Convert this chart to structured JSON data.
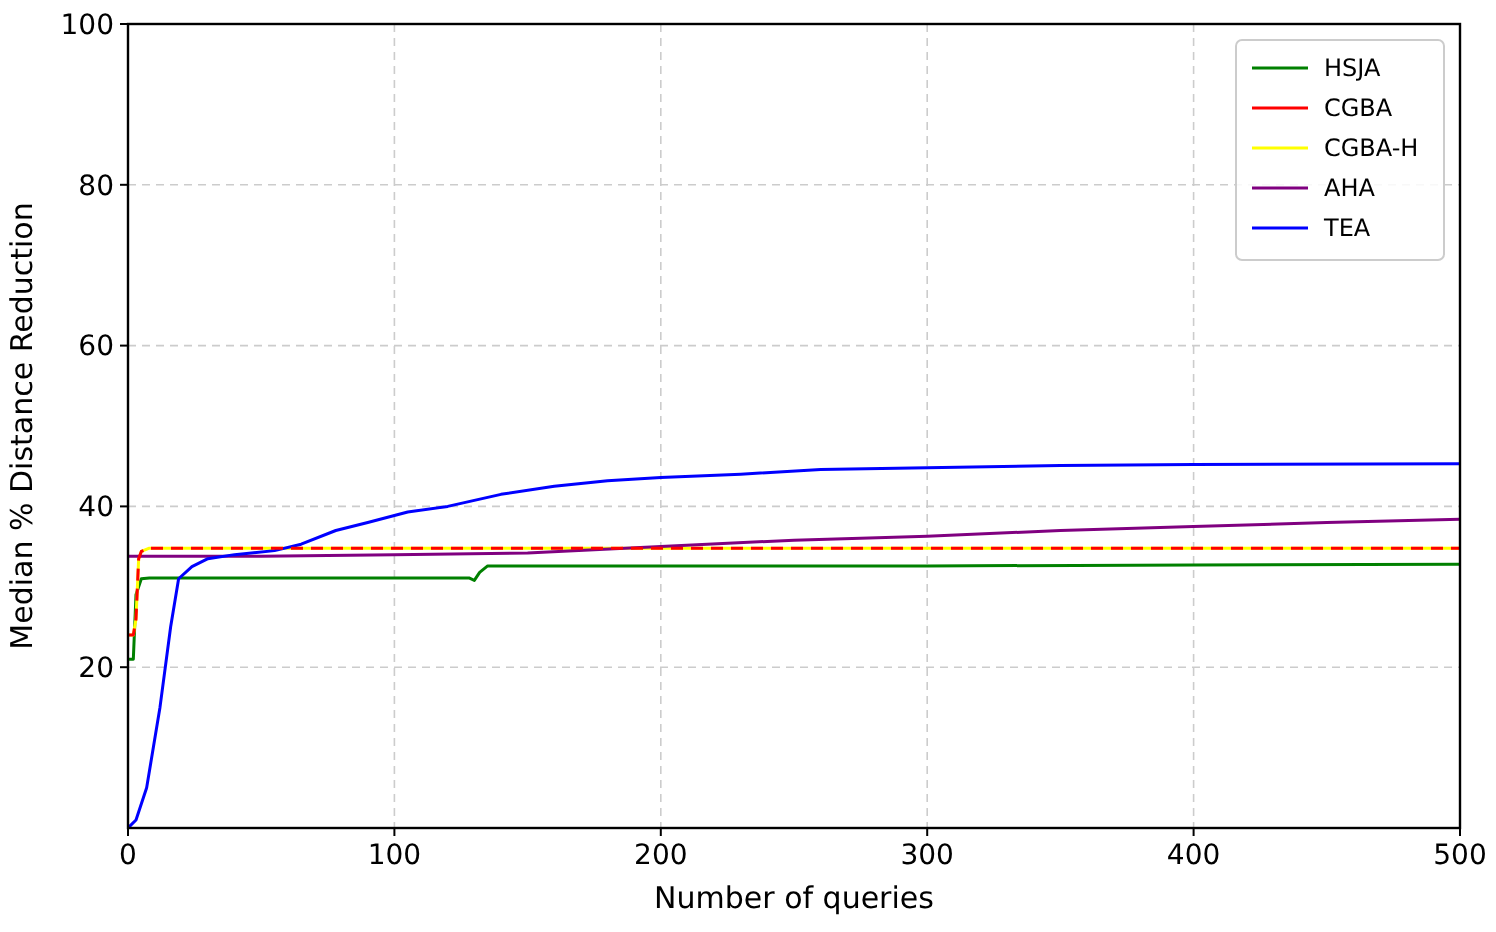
{
  "chart_data": {
    "type": "line",
    "xlabel": "Number of queries",
    "ylabel": "Median % Distance Reduction",
    "xlim": [
      0,
      500
    ],
    "ylim": [
      0,
      100
    ],
    "xticks": [
      0,
      100,
      200,
      300,
      400,
      500
    ],
    "yticks": [
      20,
      40,
      60,
      80,
      100
    ],
    "grid": true,
    "legend": "top right",
    "series": [
      {
        "name": "HSJA",
        "color": "#008000",
        "x": [
          0,
          2,
          3,
          5,
          8,
          50,
          100,
          128,
          130,
          132,
          135,
          200,
          300,
          400,
          500
        ],
        "values": [
          21,
          21,
          29,
          31,
          31.1,
          31.1,
          31.1,
          31.1,
          30.8,
          31.8,
          32.6,
          32.6,
          32.6,
          32.7,
          32.8
        ]
      },
      {
        "name": "CGBA",
        "color": "#ff0000",
        "line_style": "dashed",
        "x": [
          0,
          2,
          3,
          4,
          5,
          8,
          100,
          200,
          300,
          400,
          500
        ],
        "values": [
          24,
          24,
          26,
          33.5,
          34.4,
          34.8,
          34.8,
          34.8,
          34.8,
          34.8,
          34.8
        ]
      },
      {
        "name": "CGBA-H",
        "color": "#ffff00",
        "x": [
          0,
          2,
          3,
          4,
          5,
          8,
          100,
          200,
          300,
          400,
          500
        ],
        "values": [
          24,
          24,
          26,
          33.5,
          34.4,
          34.8,
          34.8,
          34.8,
          34.8,
          34.8,
          34.8
        ]
      },
      {
        "name": "AHA",
        "color": "#800080",
        "x": [
          0,
          50,
          100,
          150,
          200,
          250,
          300,
          350,
          400,
          450,
          500
        ],
        "values": [
          33.8,
          33.8,
          34,
          34.2,
          35,
          35.8,
          36.3,
          37,
          37.5,
          38,
          38.4
        ]
      },
      {
        "name": "TEA",
        "color": "#0000ff",
        "x": [
          0,
          3,
          7,
          12,
          16,
          19,
          24,
          30,
          40,
          55,
          65,
          78,
          90,
          105,
          120,
          140,
          160,
          180,
          200,
          230,
          260,
          300,
          350,
          400,
          500
        ],
        "values": [
          0,
          1,
          5,
          15,
          25,
          31,
          32.5,
          33.5,
          34,
          34.5,
          35.3,
          37,
          38,
          39.3,
          40,
          41.5,
          42.5,
          43.2,
          43.6,
          44,
          44.6,
          44.8,
          45.1,
          45.2,
          45.3
        ]
      }
    ]
  }
}
